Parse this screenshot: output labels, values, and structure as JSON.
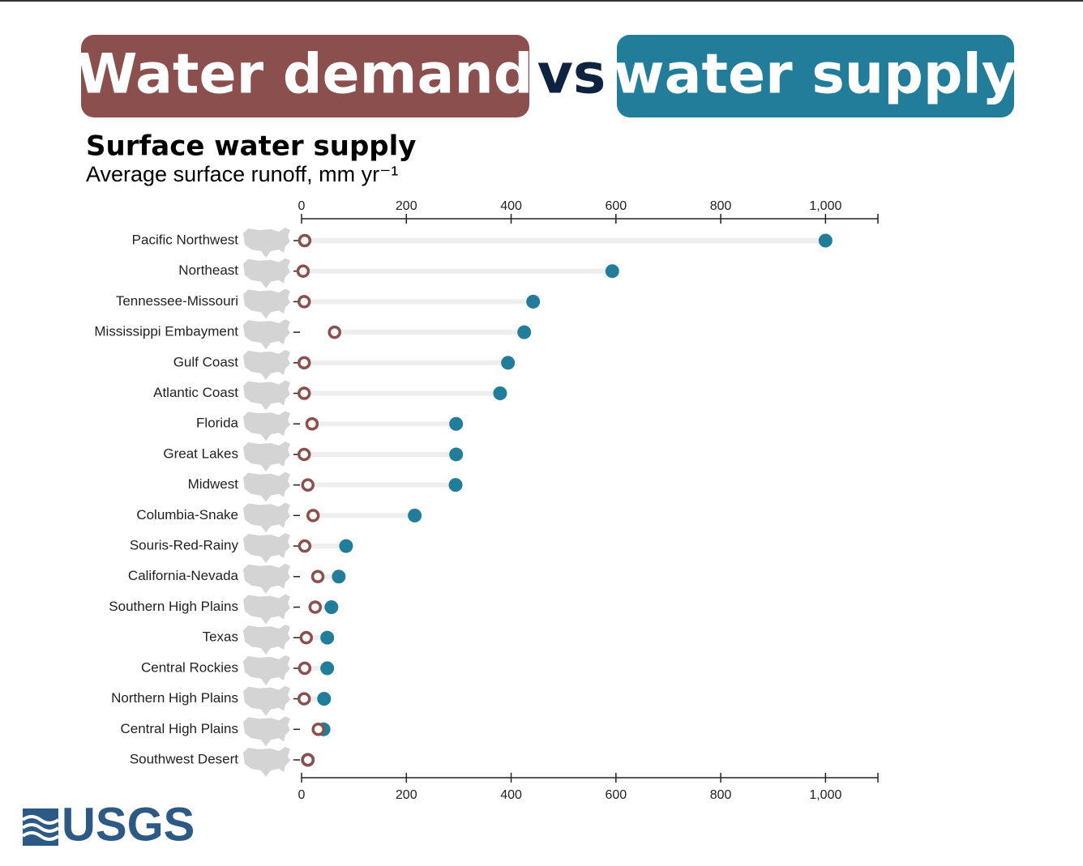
{
  "chart_data": {
    "type": "dumbbell",
    "title_connector": "vs",
    "title": "Surface water supply",
    "subtitle": "Average surface runoff, mm yr⁻¹",
    "categories": [
      "Pacific Northwest",
      "Northeast",
      "Tennessee-Missouri",
      "Mississippi Embayment",
      "Gulf Coast",
      "Atlantic Coast",
      "Florida",
      "Great Lakes",
      "Midwest",
      "Columbia-Snake",
      "Souris-Red-Rainy",
      "California-Nevada",
      "Southern High Plains",
      "Texas",
      "Central Rockies",
      "Northern High Plains",
      "Central High Plains",
      "Southwest Desert"
    ],
    "series": [
      {
        "name": "Water demand",
        "color": "#8b504e",
        "values": [
          6,
          3,
          5,
          63,
          5,
          5,
          20,
          5,
          12,
          22,
          6,
          31,
          26,
          9,
          6,
          5,
          32,
          12
        ]
      },
      {
        "name": "water supply",
        "color": "#217d9a",
        "values": [
          1000,
          593,
          442,
          425,
          394,
          379,
          295,
          295,
          294,
          216,
          85,
          71,
          57,
          49,
          49,
          43,
          42,
          12
        ]
      }
    ],
    "xlim": [
      0,
      1100
    ],
    "xticks": [
      0,
      200,
      400,
      600,
      800,
      {
        "value": 1000,
        "label": "1,000"
      }
    ],
    "logo": "USGS"
  }
}
